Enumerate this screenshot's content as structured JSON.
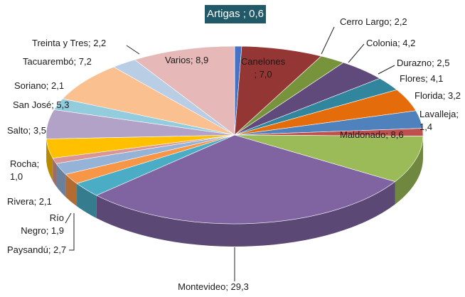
{
  "chart_data": {
    "type": "pie3d",
    "values": [
      0.6,
      7.0,
      2.2,
      4.2,
      2.5,
      4.1,
      3.2,
      1.4,
      8.6,
      29.3,
      2.7,
      1.9,
      2.1,
      1.0,
      3.5,
      5.3,
      2.1,
      7.2,
      2.2,
      8.9
    ],
    "value_labels": [
      "Artigas ; 0,6",
      "Canelones\n; 7,0",
      "Cerro Largo; 2,2",
      "Colonia; 4,2",
      "Durazno; 2,5",
      "Flores; 4,1",
      "Florida; 3,2",
      "Lavalleja;\n1,4",
      "Maldonado; 8,6",
      "Montevideo; 29,3",
      "Paysandú; 2,7",
      "Río\nNegro; 1,9",
      "Rivera; 2,1",
      "Rocha;\n1,0",
      "Salto; 3,5",
      "San José; 5,3",
      "Soriano; 2,1",
      "Tacuarembó; 7,2",
      "Treinta y Tres; 2,2",
      "Varios; 8,9"
    ],
    "colors": [
      "#4472c4",
      "#943634",
      "#77933c",
      "#604a7b",
      "#31859c",
      "#e46c0a",
      "#4f81bd",
      "#c0504d",
      "#9bbb59",
      "#8064a2",
      "#4bacc6",
      "#f79646",
      "#95b3d7",
      "#d99694",
      "#ffc000",
      "#b3a2c7",
      "#93cddd",
      "#fac090",
      "#b9cde5",
      "#e6b9b8"
    ]
  }
}
